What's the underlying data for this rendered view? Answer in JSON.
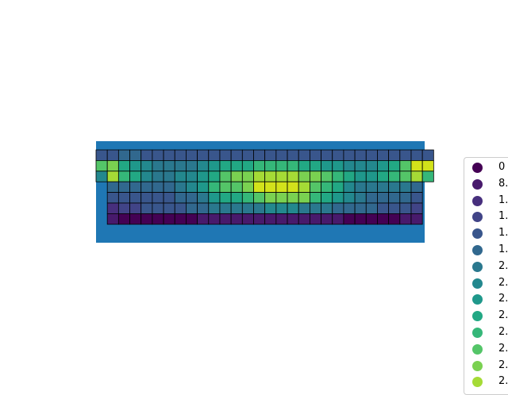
{
  "chart_data": {
    "type": "heatmap",
    "title": "",
    "xlabel": "",
    "ylabel": "",
    "axes_visible": false,
    "grid": false,
    "background_color": "#1f77b4",
    "cell_edge_color": "#000000",
    "legend_position": "right",
    "colormap": "viridis",
    "value_range": [
      0,
      3
    ],
    "rows": [
      [
        4,
        4,
        5,
        5,
        4,
        4,
        4,
        4,
        4,
        4,
        4,
        4,
        4,
        4,
        4,
        4,
        4,
        4,
        4,
        4,
        4,
        4,
        4,
        4,
        4,
        4,
        4,
        4,
        4,
        4
      ],
      [
        11,
        12,
        9,
        8,
        7,
        6,
        6,
        6,
        6,
        7,
        8,
        9,
        9,
        9,
        10,
        10,
        10,
        10,
        9,
        9,
        8,
        8,
        7,
        7,
        7,
        8,
        9,
        11,
        14,
        14
      ],
      [
        7,
        13,
        10,
        9,
        7,
        6,
        6,
        7,
        7,
        8,
        9,
        11,
        12,
        12,
        13,
        13,
        13,
        13,
        12,
        12,
        11,
        10,
        9,
        8,
        8,
        9,
        10,
        11,
        13,
        10
      ],
      [
        null,
        5,
        5,
        5,
        5,
        5,
        5,
        6,
        7,
        8,
        10,
        11,
        11,
        12,
        14,
        14,
        14,
        14,
        13,
        11,
        10,
        9,
        7,
        6,
        6,
        6,
        6,
        6,
        5,
        null
      ],
      [
        null,
        4,
        4,
        4,
        4,
        4,
        4,
        5,
        5,
        6,
        8,
        9,
        9,
        10,
        11,
        12,
        12,
        12,
        12,
        10,
        9,
        8,
        7,
        6,
        5,
        5,
        5,
        5,
        4,
        null
      ],
      [
        null,
        2,
        3,
        3,
        4,
        4,
        4,
        4,
        5,
        5,
        6,
        6,
        6,
        6,
        6,
        7,
        7,
        7,
        6,
        6,
        6,
        5,
        5,
        5,
        5,
        4,
        4,
        4,
        3,
        null
      ],
      [
        null,
        1,
        0,
        0,
        0,
        0,
        0,
        0,
        0,
        1,
        1,
        1,
        1,
        1,
        1,
        1,
        1,
        1,
        1,
        1,
        1,
        1,
        0,
        0,
        0,
        0,
        0,
        1,
        1,
        null
      ]
    ],
    "legend_entries": [
      "0",
      "8.",
      "1.",
      "1.",
      "1.",
      "1.",
      "2.",
      "2.",
      "2.",
      "2.",
      "2.",
      "2.",
      "2.",
      "2."
    ],
    "palette": [
      "#440154",
      "#481a6c",
      "#472f7d",
      "#414487",
      "#39568c",
      "#31688e",
      "#2a788e",
      "#23888e",
      "#1f988b",
      "#22a884",
      "#35b779",
      "#54c568",
      "#7ad151",
      "#a5db36",
      "#d2e21b",
      "#fde725"
    ]
  }
}
